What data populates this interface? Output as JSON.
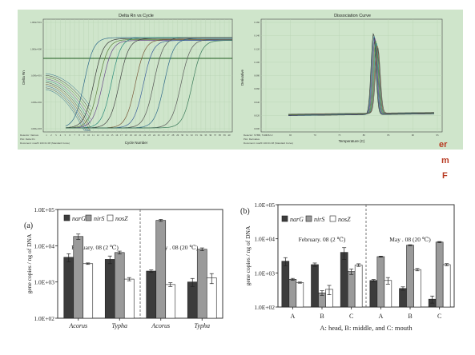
{
  "qpcr": {
    "amplification": {
      "title": "Delta Rn vs Cycle",
      "xlabel": "Cycle Number",
      "ylabel": "Delta Rn",
      "x_ticks": [
        "1",
        "2",
        "3",
        "4",
        "5",
        "6",
        "7",
        "8",
        "9",
        "10",
        "11",
        "12",
        "13",
        "14",
        "15",
        "16",
        "17",
        "18",
        "19",
        "20",
        "21",
        "22",
        "23",
        "24",
        "25",
        "26",
        "27",
        "28",
        "29",
        "30",
        "31",
        "32",
        "33",
        "34",
        "35",
        "36",
        "37",
        "38",
        "39",
        "40"
      ],
      "y_ticks": [
        "1.000e+001",
        "1.000e+000",
        "1.000e-001",
        "1.000e-002",
        "1.000e-003"
      ],
      "footnote": [
        "Detector: Various",
        "Plot: Delta Rn",
        "Document: nosZF 100 01 08 (Standard Curve)"
      ]
    },
    "dissociation": {
      "title": "Dissociation Curve",
      "xlabel": "Temperature (C)",
      "ylabel": "Derivative",
      "x_ticks": [
        "60",
        "65",
        "70",
        "75",
        "80",
        "85",
        "90",
        "95"
      ],
      "y_ticks": [
        "0.000",
        "0.020",
        "0.040",
        "0.060",
        "0.080",
        "0.100",
        "0.120",
        "0.140",
        "0.160"
      ],
      "footnote": [
        "Detector: SYBR, Tm = 82.2",
        "Plot: Derivative",
        "Document: nosZF 100 01 08 (Standard Curve)"
      ]
    }
  },
  "side_letters": [
    "er",
    "m",
    "F"
  ],
  "chart_data": [
    {
      "type": "bar",
      "panel_label": "(a)",
      "ylabel": "gene copies / ng of DNA",
      "scale": "log",
      "ylim": [
        100,
        100000
      ],
      "y_ticks": [
        "1.0E+02",
        "1.0E+03",
        "1.0E+04",
        "1.0E+05"
      ],
      "groups": [
        {
          "label": "February. 08 (2 ℃)",
          "categories": [
            "Acorus",
            "Typha"
          ]
        },
        {
          "label": "May . 08 (20 ℃)",
          "categories": [
            "Acorus",
            "Typha"
          ]
        }
      ],
      "series": [
        {
          "name": "narG",
          "color": "#3c3c3c",
          "values": [
            4800,
            4200,
            2000,
            1000
          ],
          "errors": [
            1200,
            1000,
            150,
            250
          ]
        },
        {
          "name": "nirS",
          "color": "#9a9a9a",
          "values": [
            18000,
            6500,
            50000,
            8000
          ],
          "errors": [
            3000,
            600,
            3000,
            700
          ]
        },
        {
          "name": "nosZ",
          "color": "#ffffff",
          "values": [
            3200,
            1200,
            850,
            1300
          ],
          "errors": [
            150,
            120,
            100,
            400
          ]
        }
      ]
    },
    {
      "type": "bar",
      "panel_label": "(b)",
      "ylabel": "gene copies / ng of DNA",
      "xlabel": "A: head, B: middle, and C: mouth",
      "scale": "log",
      "ylim": [
        100,
        100000
      ],
      "y_ticks": [
        "1.0E+02",
        "1.0E+03",
        "1.0E+04",
        "1.0E+05"
      ],
      "groups": [
        {
          "label": "February. 08 (2 ℃)",
          "categories": [
            "A",
            "B",
            "C"
          ]
        },
        {
          "label": "May . 08 (20 ℃)",
          "categories": [
            "A",
            "B",
            "C"
          ]
        }
      ],
      "series": [
        {
          "name": "narG",
          "color": "#3c3c3c",
          "values": [
            2200,
            1750,
            4000,
            600,
            350,
            170
          ],
          "errors": [
            600,
            200,
            1500,
            40,
            40,
            40
          ]
        },
        {
          "name": "nirS",
          "color": "#9a9a9a",
          "values": [
            650,
            260,
            1100,
            3000,
            6500,
            8000
          ],
          "errors": [
            40,
            40,
            200,
            100,
            200,
            300
          ]
        },
        {
          "name": "nosZ",
          "color": "#ffffff",
          "values": [
            520,
            330,
            1700,
            600,
            1250,
            1750
          ],
          "errors": [
            20,
            100,
            150,
            130,
            100,
            120
          ]
        }
      ]
    }
  ]
}
